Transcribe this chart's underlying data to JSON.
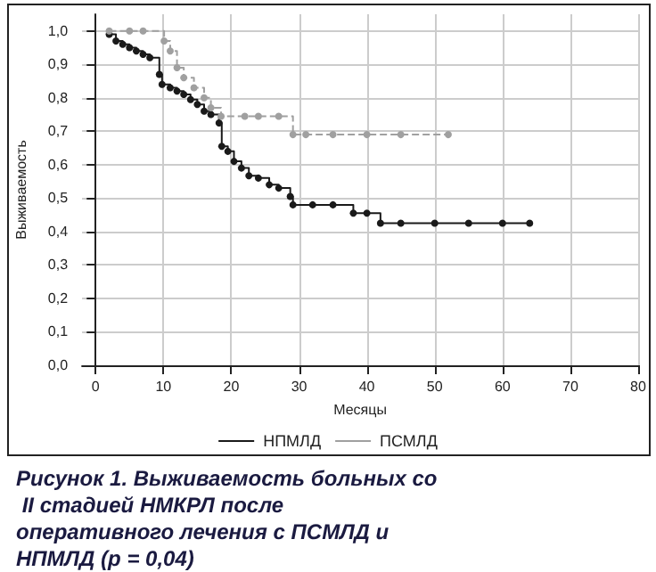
{
  "chart_data": {
    "type": "step",
    "title": "Рисунок 1. Выживаемость больных со II стадией НМКРЛ после оперативного лечения с ПСМЛД и НПМЛД (p = 0,04)",
    "xlabel": "Месяцы",
    "ylabel": "Выживаемость",
    "series": [
      {
        "name": "НПМЛД",
        "color": "#1a1a1a",
        "line_style": "solid",
        "x": [
          2,
          3,
          4,
          5,
          6,
          7,
          8,
          9.4,
          9.8,
          11,
          12,
          13,
          14,
          15,
          16,
          17,
          18.2,
          18.6,
          19.5,
          20.4,
          21.5,
          22.6,
          24,
          25.6,
          27,
          28.7,
          29.1,
          32,
          35,
          38,
          40,
          42,
          45,
          50,
          55,
          60,
          64
        ],
        "values": [
          0.99,
          0.97,
          0.96,
          0.95,
          0.94,
          0.93,
          0.92,
          0.87,
          0.84,
          0.83,
          0.82,
          0.81,
          0.795,
          0.78,
          0.76,
          0.75,
          0.725,
          0.655,
          0.64,
          0.61,
          0.59,
          0.567,
          0.56,
          0.54,
          0.53,
          0.505,
          0.48,
          0.48,
          0.48,
          0.455,
          0.455,
          0.425,
          0.425,
          0.425,
          0.425,
          0.425,
          0.425
        ]
      },
      {
        "name": "ПСМЛД",
        "color": "#a0a0a0",
        "line_style": "dashed",
        "x": [
          2,
          5,
          7,
          10.1,
          11,
          12,
          13,
          14.5,
          16,
          17,
          18.5,
          22,
          24,
          27,
          29.1,
          31,
          35,
          40,
          45,
          52
        ],
        "values": [
          1.0,
          1.0,
          1.0,
          0.97,
          0.94,
          0.89,
          0.86,
          0.83,
          0.8,
          0.77,
          0.745,
          0.745,
          0.745,
          0.745,
          0.69,
          0.69,
          0.69,
          0.69,
          0.69,
          0.69
        ]
      }
    ],
    "xlim": [
      -2,
      80
    ],
    "xticks": [
      0,
      10,
      20,
      30,
      40,
      50,
      60,
      70,
      80
    ],
    "ylim": [
      0,
      1.05
    ],
    "yticks": [
      {
        "value": 0,
        "label": "0,0"
      },
      {
        "value": 0.1,
        "label": "0,1"
      },
      {
        "value": 0.2,
        "label": "0,2"
      },
      {
        "value": 0.3,
        "label": "0,3"
      },
      {
        "value": 0.4,
        "label": "0,4"
      },
      {
        "value": 0.5,
        "label": "0,5"
      },
      {
        "value": 0.6,
        "label": "0,6"
      },
      {
        "value": 0.7,
        "label": "0,7"
      },
      {
        "value": 0.8,
        "label": "0,8"
      },
      {
        "value": 0.9,
        "label": "0,9"
      },
      {
        "value": 1.0,
        "label": "1,0"
      }
    ],
    "grid": true,
    "legend": "bottom",
    "marker": "circle"
  }
}
